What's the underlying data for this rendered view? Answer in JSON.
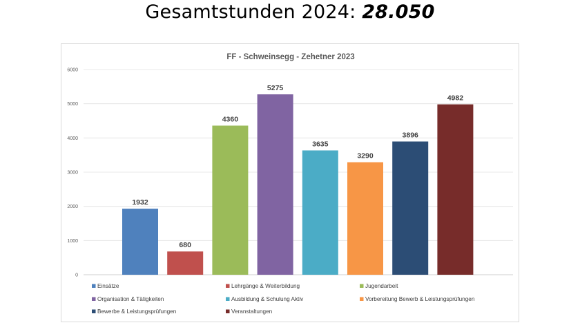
{
  "headline": {
    "prefix": "Gesamtstunden 2024:",
    "value": "28.050"
  },
  "chart_data": {
    "type": "bar",
    "title": "FF - Schweinsegg - Zehetner 2023",
    "xlabel": "",
    "ylabel": "",
    "ylim": [
      0,
      6000
    ],
    "yticks": [
      0,
      1000,
      2000,
      3000,
      4000,
      5000,
      6000
    ],
    "grid": true,
    "legend_position": "bottom",
    "categories": [
      "Einsätze",
      "Lehrgänge & Weiterbildung",
      "Jugendarbeit",
      "Organisation & Tätigkeiten",
      "Ausbildung & Schulung Aktiv",
      "Vorbereitung Bewerb & Leistungsprüfungen",
      "Bewerbe & Leistungsprüfungen",
      "Veranstaltungen"
    ],
    "values": [
      1932,
      680,
      4360,
      5275,
      3635,
      3290,
      3896,
      4982
    ],
    "colors": [
      "#4f81bd",
      "#c0504d",
      "#9bbb59",
      "#8064a2",
      "#4bacc6",
      "#f79646",
      "#2c4d75",
      "#772c2a"
    ]
  }
}
